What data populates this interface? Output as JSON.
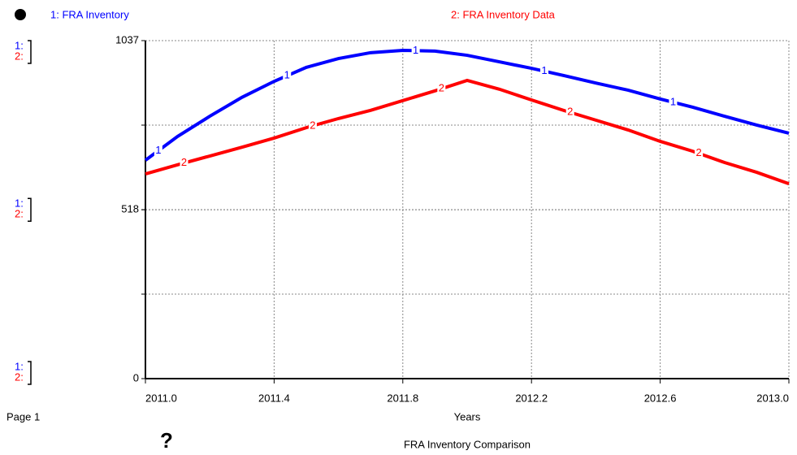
{
  "page_label": "Page 1",
  "help_icon": "?",
  "chart_data": {
    "type": "line",
    "title": "FRA Inventory Comparison",
    "xlabel": "Years",
    "x": [
      2011.0,
      2011.1,
      2011.2,
      2011.3,
      2011.4,
      2011.5,
      2011.6,
      2011.7,
      2011.8,
      2011.9,
      2012.0,
      2012.1,
      2012.2,
      2012.3,
      2012.4,
      2012.5,
      2012.6,
      2012.7,
      2012.8,
      2012.9,
      2013.0
    ],
    "series": [
      {
        "name": "1: FRA Inventory",
        "key": "1",
        "scale_key": "1:",
        "color": "#0000ff",
        "values": [
          670,
          743,
          805,
          863,
          912,
          955,
          982,
          1000,
          1007,
          1005,
          992,
          972,
          952,
          930,
          907,
          885,
          858,
          833,
          805,
          778,
          753
        ]
      },
      {
        "name": "2: FRA Inventory Data",
        "key": "2",
        "scale_key": "2:",
        "color": "#ff0000",
        "values": [
          628,
          656,
          683,
          710,
          738,
          770,
          798,
          823,
          853,
          883,
          915,
          888,
          855,
          823,
          793,
          763,
          728,
          698,
          663,
          633,
          598
        ]
      }
    ],
    "xlim": [
      2011.0,
      2013.0
    ],
    "xticks": [
      {
        "value": 2011.0,
        "label": "2011.0"
      },
      2011.4,
      2011.8,
      2012.2,
      2012.6,
      {
        "value": 2013.0,
        "label": "2013.0"
      }
    ],
    "ylim": [
      0,
      1037
    ],
    "yticks": [
      0,
      518,
      1037
    ],
    "grid": true
  }
}
